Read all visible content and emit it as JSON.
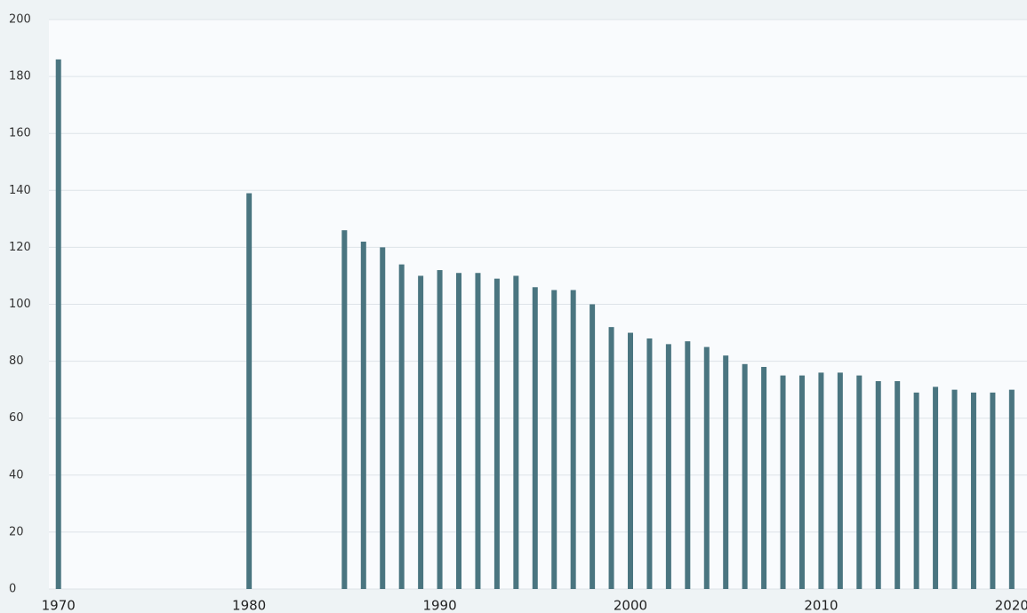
{
  "chart_data": {
    "type": "bar",
    "x": [
      1970,
      1980,
      1985,
      1986,
      1987,
      1988,
      1989,
      1990,
      1991,
      1992,
      1993,
      1994,
      1995,
      1996,
      1997,
      1998,
      1999,
      2000,
      2001,
      2002,
      2003,
      2004,
      2005,
      2006,
      2007,
      2008,
      2009,
      2010,
      2011,
      2012,
      2013,
      2014,
      2015,
      2016,
      2017,
      2018,
      2019,
      2020
    ],
    "values": [
      186,
      139,
      126,
      122,
      120,
      114,
      110,
      112,
      111,
      111,
      109,
      110,
      106,
      105,
      105,
      100,
      92,
      90,
      88,
      86,
      87,
      85,
      82,
      79,
      78,
      75,
      75,
      76,
      76,
      75,
      73,
      73,
      69,
      71,
      70,
      69,
      69,
      70
    ],
    "color": "#4a7580",
    "xlim": [
      1969.5,
      2020.8
    ],
    "xticks": [
      1970,
      1980,
      1990,
      2000,
      2010,
      2020
    ],
    "ylim": [
      0,
      200
    ],
    "yticks": [
      0,
      20,
      40,
      60,
      80,
      100,
      120,
      140,
      160,
      180,
      200
    ],
    "grid": true
  }
}
